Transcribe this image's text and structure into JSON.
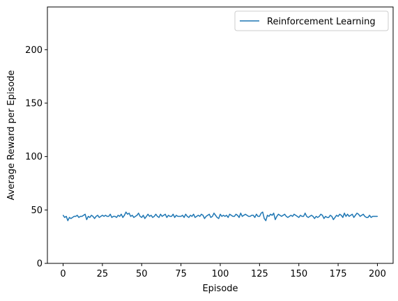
{
  "chart_data": {
    "type": "line",
    "title": "",
    "xlabel": "Episode",
    "ylabel": "Average Reward per Episode",
    "xlim": [
      -10,
      210
    ],
    "ylim": [
      0,
      240
    ],
    "xticks": [
      0,
      25,
      50,
      75,
      100,
      125,
      150,
      175,
      200
    ],
    "yticks": [
      0,
      50,
      100,
      150,
      200
    ],
    "grid": false,
    "legend_position": "top-right",
    "series": [
      {
        "name": "Reinforcement Learning",
        "color": "#1f77b4",
        "x": [
          0,
          1,
          2,
          3,
          4,
          5,
          6,
          7,
          8,
          9,
          10,
          11,
          12,
          13,
          14,
          15,
          16,
          17,
          18,
          19,
          20,
          21,
          22,
          23,
          24,
          25,
          26,
          27,
          28,
          29,
          30,
          31,
          32,
          33,
          34,
          35,
          36,
          37,
          38,
          39,
          40,
          41,
          42,
          43,
          44,
          45,
          46,
          47,
          48,
          49,
          50,
          51,
          52,
          53,
          54,
          55,
          56,
          57,
          58,
          59,
          60,
          61,
          62,
          63,
          64,
          65,
          66,
          67,
          68,
          69,
          70,
          71,
          72,
          73,
          74,
          75,
          76,
          77,
          78,
          79,
          80,
          81,
          82,
          83,
          84,
          85,
          86,
          87,
          88,
          89,
          90,
          91,
          92,
          93,
          94,
          95,
          96,
          97,
          98,
          99,
          100,
          101,
          102,
          103,
          104,
          105,
          106,
          107,
          108,
          109,
          110,
          111,
          112,
          113,
          114,
          115,
          116,
          117,
          118,
          119,
          120,
          121,
          122,
          123,
          124,
          125,
          126,
          127,
          128,
          129,
          130,
          131,
          132,
          133,
          134,
          135,
          136,
          137,
          138,
          139,
          140,
          141,
          142,
          143,
          144,
          145,
          146,
          147,
          148,
          149,
          150,
          151,
          152,
          153,
          154,
          155,
          156,
          157,
          158,
          159,
          160,
          161,
          162,
          163,
          164,
          165,
          166,
          167,
          168,
          169,
          170,
          171,
          172,
          173,
          174,
          175,
          176,
          177,
          178,
          179,
          180,
          181,
          182,
          183,
          184,
          185,
          186,
          187,
          188,
          189,
          190,
          191,
          192,
          193,
          194,
          195,
          196,
          197,
          198,
          199,
          200
        ],
        "y": [
          45,
          43,
          44,
          40,
          43,
          42,
          43,
          44,
          44,
          45,
          43,
          44,
          44,
          45,
          46,
          41,
          44,
          43,
          45,
          44,
          42,
          44,
          45,
          43,
          44,
          45,
          44,
          45,
          44,
          44,
          46,
          43,
          44,
          44,
          43,
          45,
          44,
          46,
          43,
          45,
          48,
          46,
          47,
          44,
          45,
          43,
          44,
          45,
          47,
          44,
          43,
          45,
          42,
          44,
          46,
          44,
          45,
          43,
          44,
          46,
          44,
          43,
          46,
          44,
          45,
          46,
          43,
          45,
          44,
          44,
          46,
          43,
          45,
          44,
          44,
          44,
          45,
          43,
          46,
          44,
          43,
          45,
          44,
          46,
          43,
          44,
          45,
          44,
          46,
          45,
          42,
          44,
          45,
          46,
          43,
          44,
          47,
          45,
          43,
          42,
          46,
          44,
          45,
          44,
          45,
          43,
          46,
          45,
          44,
          44,
          46,
          45,
          43,
          47,
          44,
          45,
          46,
          45,
          44,
          44,
          45,
          45,
          43,
          46,
          44,
          44,
          47,
          48,
          42,
          40,
          45,
          44,
          46,
          45,
          47,
          41,
          44,
          46,
          45,
          44,
          45,
          46,
          44,
          43,
          44,
          45,
          44,
          46,
          45,
          44,
          43,
          45,
          44,
          44,
          47,
          44,
          43,
          44,
          45,
          44,
          42,
          44,
          43,
          44,
          46,
          45,
          42,
          44,
          43,
          43,
          45,
          44,
          41,
          43,
          45,
          44,
          46,
          45,
          43,
          47,
          44,
          46,
          44,
          45,
          46,
          43,
          45,
          47,
          46,
          44,
          45,
          46,
          44,
          43,
          43,
          45,
          43,
          44,
          44,
          44,
          44
        ]
      }
    ]
  }
}
